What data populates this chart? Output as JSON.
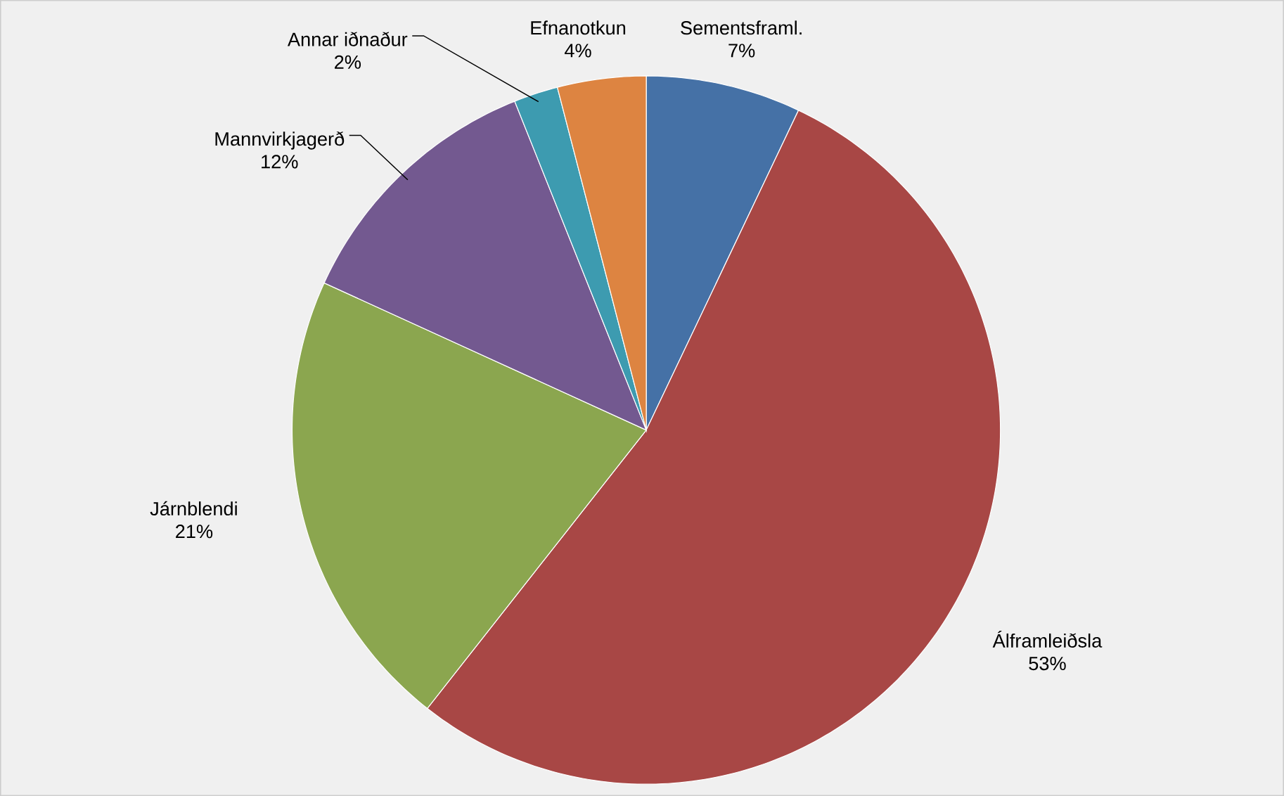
{
  "chart_data": {
    "type": "pie",
    "categories": [
      "Sementsframl.",
      "Álframleiðsla",
      "Járnblendi",
      "Mannvirkjagerð",
      "Annar iðnaður",
      "Efnanotkun"
    ],
    "values": [
      7,
      53,
      21,
      12,
      2,
      4
    ],
    "value_labels": [
      "7%",
      "53%",
      "21%",
      "12%",
      "2%",
      "4%"
    ],
    "colors": [
      "#4571a6",
      "#a84745",
      "#8ba64f",
      "#735990",
      "#3d9bb0",
      "#dd8441"
    ]
  }
}
